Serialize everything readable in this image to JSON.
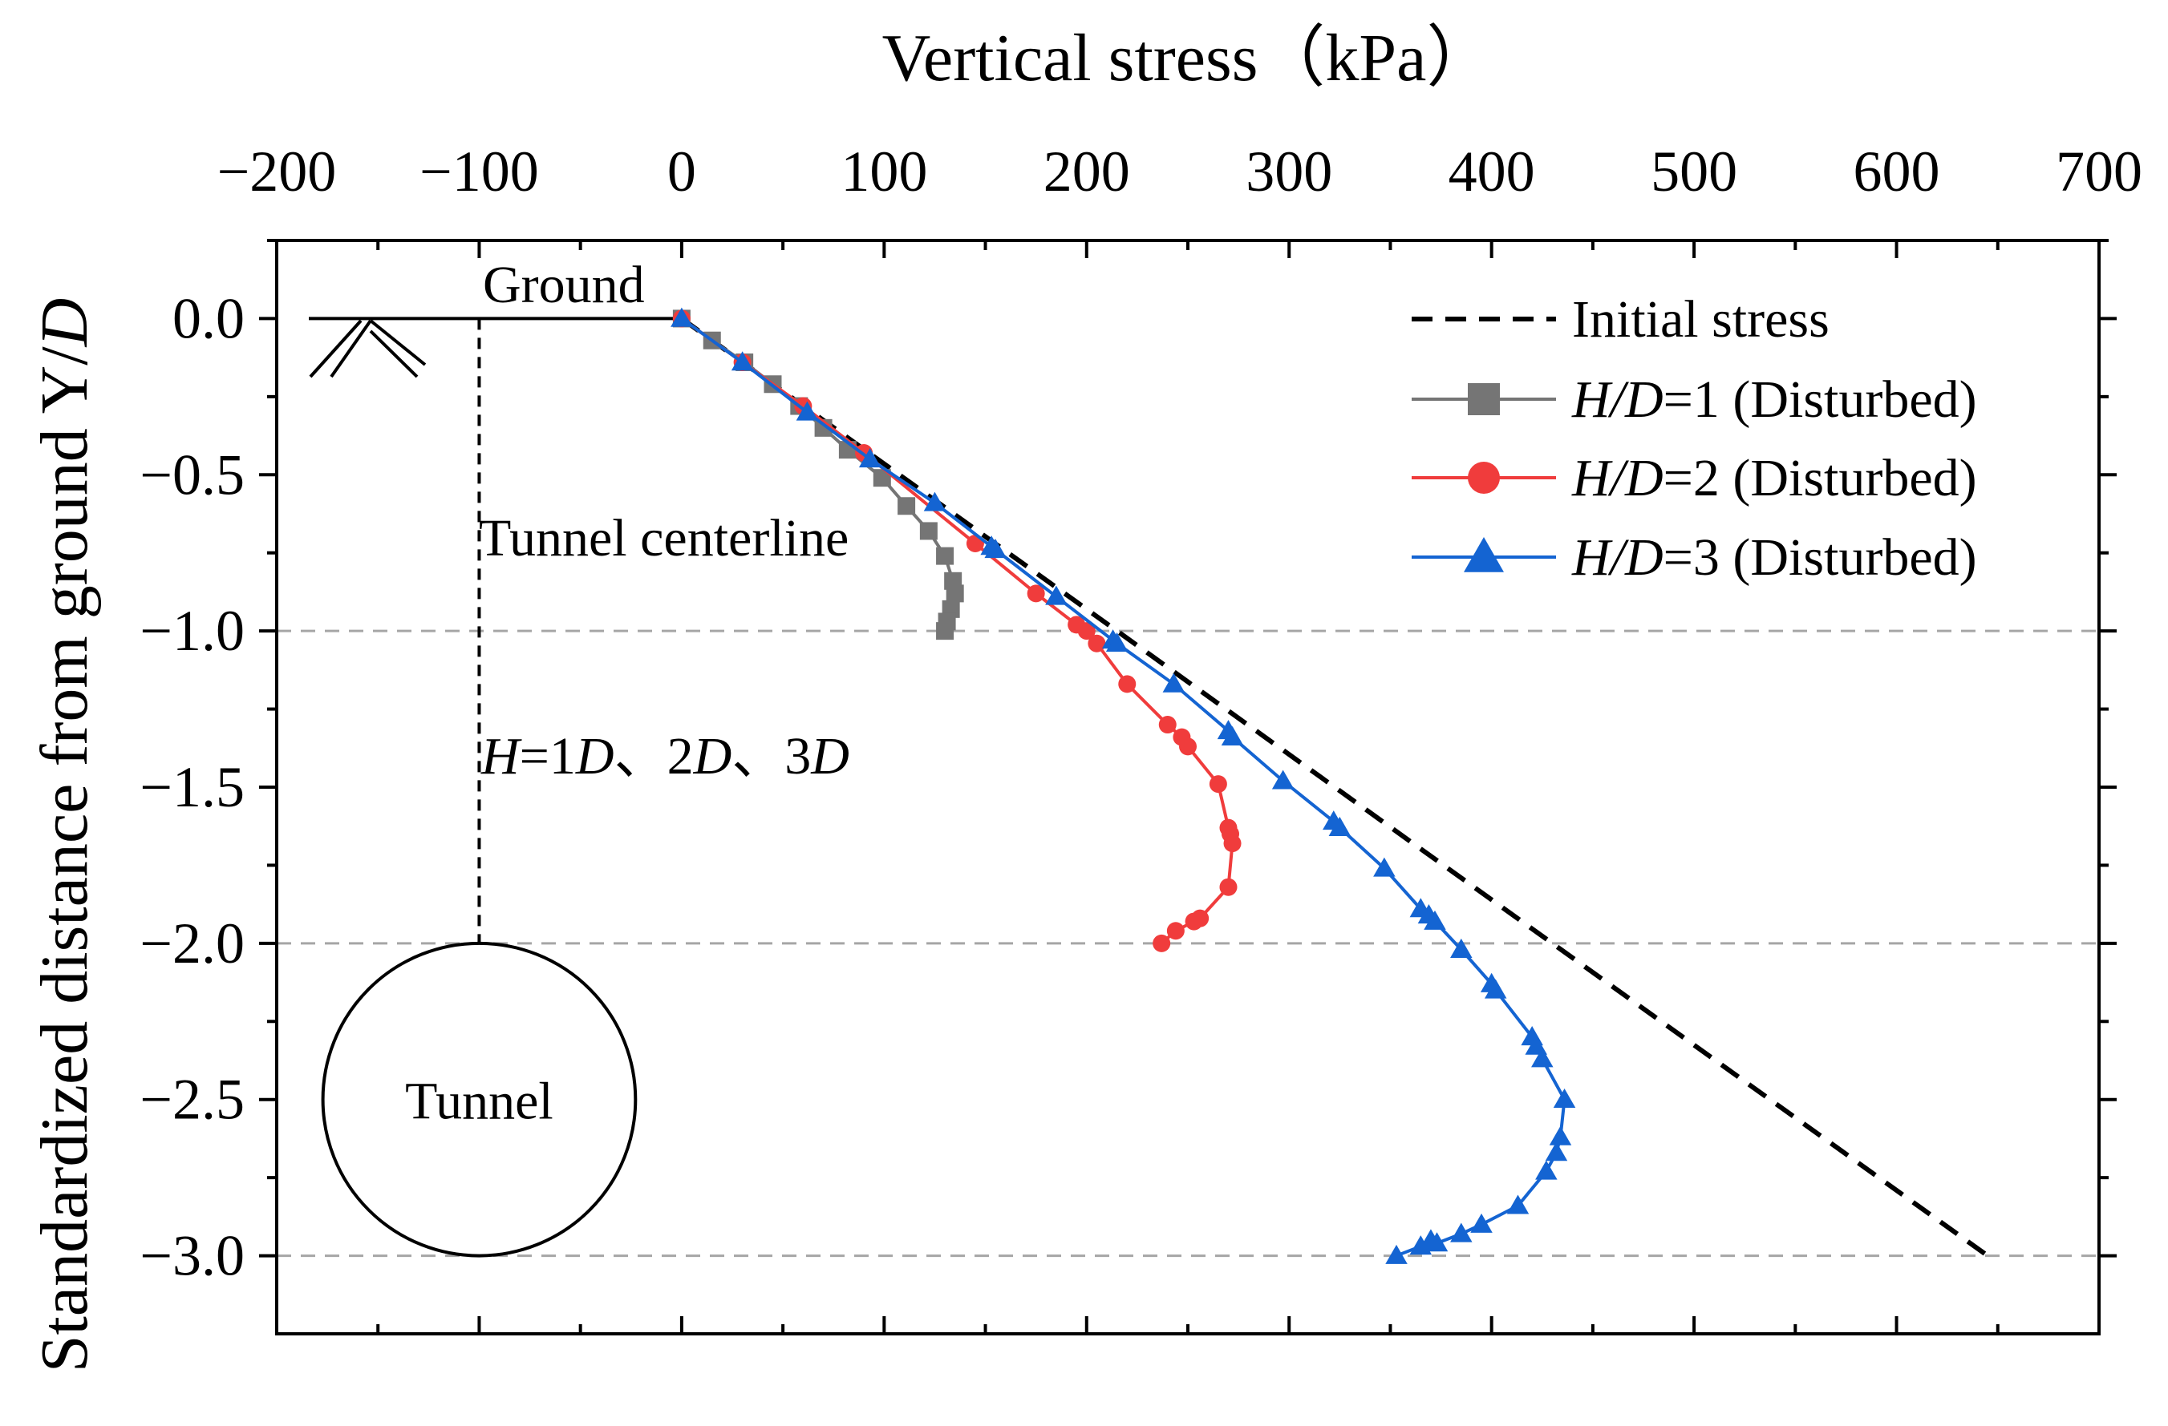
{
  "chart_data": {
    "type": "line",
    "title": "",
    "xlabel": "Vertical stress（kPa）",
    "ylabel_parts": [
      "Standardized distance from ground Y/",
      "D"
    ],
    "xlim": [
      -200,
      700
    ],
    "ylim": [
      -3.25,
      0.25
    ],
    "x_ticks": [
      -200,
      -100,
      0,
      100,
      200,
      300,
      400,
      500,
      600,
      700
    ],
    "x_tick_labels": [
      "−200",
      "−100",
      "0",
      "100",
      "200",
      "300",
      "400",
      "500",
      "600",
      "700"
    ],
    "y_ticks": [
      0.0,
      -0.5,
      -1.0,
      -1.5,
      -2.0,
      -2.5,
      -3.0
    ],
    "y_tick_labels": [
      "0.0",
      "−0.5",
      "−1.0",
      "−1.5",
      "−2.0",
      "−2.5",
      "−3.0"
    ],
    "reference_lines_y": [
      -1.0,
      -2.0,
      -3.0
    ],
    "legend_position": "top-right",
    "series": [
      {
        "name": "Initial stress",
        "legend_parts": [
          {
            "t": "Initial stress",
            "i": false
          }
        ],
        "style": "dashed",
        "marker": "none",
        "color": "#000000",
        "points": [
          [
            0,
            0
          ],
          [
            645,
            -3.0
          ]
        ]
      },
      {
        "name": "H/D=1 (Disturbed)",
        "legend_parts": [
          {
            "t": "H/D",
            "i": true
          },
          {
            "t": "=1 (Disturbed)",
            "i": false
          }
        ],
        "style": "solid",
        "marker": "square",
        "color": "#757575",
        "points": [
          [
            0,
            0
          ],
          [
            15,
            -0.07
          ],
          [
            31,
            -0.14
          ],
          [
            45,
            -0.21
          ],
          [
            58,
            -0.28
          ],
          [
            70,
            -0.35
          ],
          [
            82,
            -0.42
          ],
          [
            99,
            -0.51
          ],
          [
            111,
            -0.6
          ],
          [
            122,
            -0.68
          ],
          [
            130,
            -0.76
          ],
          [
            134,
            -0.84
          ],
          [
            135,
            -0.88
          ],
          [
            133,
            -0.93
          ],
          [
            131,
            -0.97
          ],
          [
            130,
            -1.0
          ]
        ]
      },
      {
        "name": "H/D=2 (Disturbed)",
        "legend_parts": [
          {
            "t": "H/D",
            "i": true
          },
          {
            "t": "=2 (Disturbed)",
            "i": false
          }
        ],
        "style": "solid",
        "marker": "circle",
        "color": "#f03c3c",
        "points": [
          [
            0,
            0
          ],
          [
            30,
            -0.14
          ],
          [
            60,
            -0.28
          ],
          [
            90,
            -0.43
          ],
          [
            145,
            -0.72
          ],
          [
            175,
            -0.88
          ],
          [
            195,
            -0.98
          ],
          [
            200,
            -1.0
          ],
          [
            205,
            -1.04
          ],
          [
            220,
            -1.17
          ],
          [
            240,
            -1.3
          ],
          [
            247,
            -1.34
          ],
          [
            250,
            -1.37
          ],
          [
            265,
            -1.49
          ],
          [
            270,
            -1.63
          ],
          [
            271,
            -1.65
          ],
          [
            272,
            -1.68
          ],
          [
            270,
            -1.82
          ],
          [
            256,
            -1.92
          ],
          [
            253,
            -1.93
          ],
          [
            244,
            -1.96
          ],
          [
            237,
            -2.0
          ]
        ]
      },
      {
        "name": "H/D=3 (Disturbed)",
        "legend_parts": [
          {
            "t": "H/D",
            "i": true
          },
          {
            "t": "=3 (Disturbed)",
            "i": false
          }
        ],
        "style": "solid",
        "marker": "triangle",
        "color": "#1464d2",
        "points": [
          [
            0,
            0
          ],
          [
            30,
            -0.14
          ],
          [
            62,
            -0.3
          ],
          [
            93,
            -0.45
          ],
          [
            125,
            -0.59
          ],
          [
            153,
            -0.73
          ],
          [
            155,
            -0.74
          ],
          [
            185,
            -0.89
          ],
          [
            213,
            -1.03
          ],
          [
            215,
            -1.04
          ],
          [
            243,
            -1.17
          ],
          [
            270,
            -1.32
          ],
          [
            272,
            -1.34
          ],
          [
            297,
            -1.48
          ],
          [
            322,
            -1.61
          ],
          [
            325,
            -1.63
          ],
          [
            347,
            -1.76
          ],
          [
            365,
            -1.89
          ],
          [
            369,
            -1.91
          ],
          [
            372,
            -1.93
          ],
          [
            385,
            -2.02
          ],
          [
            400,
            -2.13
          ],
          [
            402,
            -2.15
          ],
          [
            420,
            -2.3
          ],
          [
            422,
            -2.33
          ],
          [
            425,
            -2.37
          ],
          [
            436,
            -2.5
          ],
          [
            434,
            -2.62
          ],
          [
            432,
            -2.67
          ],
          [
            427,
            -2.73
          ],
          [
            413,
            -2.84
          ],
          [
            395,
            -2.9
          ],
          [
            385,
            -2.93
          ],
          [
            373,
            -2.96
          ],
          [
            370,
            -2.95
          ],
          [
            365,
            -2.97
          ],
          [
            353,
            -3.0
          ]
        ]
      }
    ],
    "annotations": {
      "ground_label": "Ground",
      "centerline_label": "Tunnel centerline",
      "tunnel_label": "Tunnel",
      "depth_label_parts": [
        {
          "t": "H",
          "i": true
        },
        {
          "t": "=1",
          "i": false
        },
        {
          "t": "D",
          "i": true
        },
        {
          "t": "、2",
          "i": false
        },
        {
          "t": "D",
          "i": true
        },
        {
          "t": "、3",
          "i": false
        },
        {
          "t": "D",
          "i": true
        }
      ]
    }
  }
}
